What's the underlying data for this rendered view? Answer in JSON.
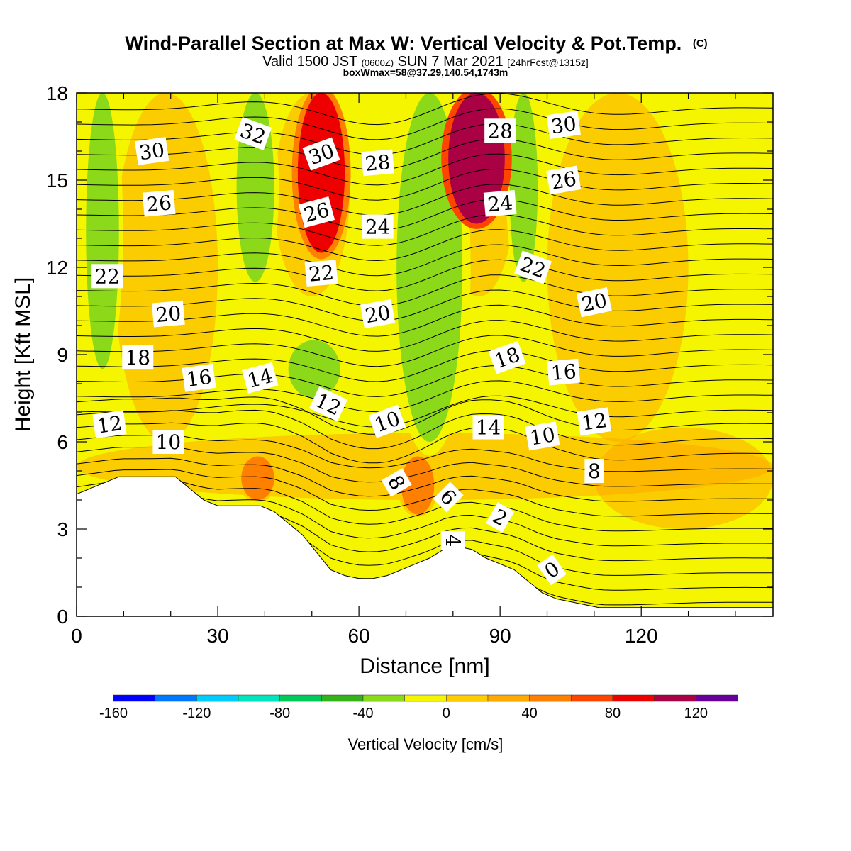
{
  "chart_data": {
    "type": "heatmap",
    "title": "Wind-Parallel Section at Max W: Vertical Velocity & Pot.Temp.",
    "title_mark": "(C)",
    "subtitle": {
      "prefix": "Valid 1500 JST ",
      "zone": "(0600Z)",
      "main": " SUN 7 Mar 2021 ",
      "fcst": "[24hrFcst@1315z]"
    },
    "subtitle2": "boxWmax=58@37.29,140.54,1743m",
    "xlabel": "Distance [nm]",
    "ylabel": "Height [Kft MSL]",
    "xlim": [
      0,
      148
    ],
    "ylim": [
      0,
      18
    ],
    "xticks": [
      0,
      30,
      60,
      90,
      120
    ],
    "yticks": [
      0,
      3,
      6,
      9,
      12,
      15,
      18
    ],
    "colorbar": {
      "label": "Vertical Velocity [cm/s]",
      "range": [
        -160,
        140
      ],
      "step": 20,
      "ticks": [
        -160,
        -120,
        -80,
        -40,
        0,
        40,
        80,
        120
      ],
      "colors": [
        "#0000ff",
        "#0077ff",
        "#00ccff",
        "#00e5bb",
        "#00c85a",
        "#33b21a",
        "#8cd91a",
        "#f5f500",
        "#ffcc00",
        "#ffaa00",
        "#ff8000",
        "#ff4400",
        "#ee0000",
        "#aa0044",
        "#660099"
      ]
    },
    "vertical_velocity_features": [
      {
        "kind": "downdraft",
        "x": [
          2,
          9
        ],
        "z": [
          8.5,
          18
        ],
        "w": -40
      },
      {
        "kind": "downdraft",
        "x": [
          34,
          42
        ],
        "z": [
          11.5,
          18
        ],
        "w": -40
      },
      {
        "kind": "downdraft",
        "x": [
          45,
          56
        ],
        "z": [
          7.5,
          9.5
        ],
        "w": -40
      },
      {
        "kind": "downdraft",
        "x": [
          68,
          82
        ],
        "z": [
          6,
          18
        ],
        "w": -40
      },
      {
        "kind": "downdraft",
        "x": [
          92,
          98
        ],
        "z": [
          11.5,
          18
        ],
        "w": -40
      },
      {
        "kind": "updraft",
        "x": [
          47,
          57
        ],
        "z": [
          12.5,
          18
        ],
        "w": 80
      },
      {
        "kind": "updraft",
        "x": [
          79,
          91
        ],
        "z": [
          13.5,
          18
        ],
        "w": 100
      },
      {
        "kind": "updraft",
        "x": [
          69,
          76
        ],
        "z": [
          3.5,
          5.5
        ],
        "w": 40
      },
      {
        "kind": "updraft",
        "x": [
          35,
          42
        ],
        "z": [
          4,
          5.5
        ],
        "w": 40
      }
    ],
    "terrain": {
      "x": [
        0,
        3,
        6,
        9,
        12,
        15,
        18,
        21,
        24,
        27,
        30,
        33,
        36,
        39,
        42,
        45,
        48,
        51,
        54,
        57,
        60,
        63,
        66,
        69,
        72,
        75,
        78,
        81,
        84,
        87,
        90,
        93,
        96,
        99,
        102,
        105,
        108,
        111,
        148
      ],
      "z": [
        4.2,
        4.4,
        4.6,
        4.8,
        4.8,
        4.8,
        4.8,
        4.8,
        4.4,
        4.0,
        3.8,
        3.8,
        3.8,
        3.8,
        3.6,
        3.2,
        2.8,
        2.2,
        1.6,
        1.4,
        1.3,
        1.3,
        1.4,
        1.6,
        1.8,
        2.0,
        2.3,
        2.4,
        2.3,
        2.0,
        1.8,
        1.6,
        1.2,
        0.8,
        0.6,
        0.5,
        0.4,
        0.3,
        0.3
      ]
    },
    "potential_temperature_labels": [
      {
        "value": "32",
        "x": 37.5,
        "z": 16.6,
        "angle": 20
      },
      {
        "value": "30",
        "x": 16,
        "z": 16.0,
        "angle": -8
      },
      {
        "value": "26",
        "x": 17.5,
        "z": 14.2,
        "angle": -5
      },
      {
        "value": "22",
        "x": 6.5,
        "z": 11.7,
        "angle": 0
      },
      {
        "value": "20",
        "x": 19.5,
        "z": 10.4,
        "angle": -5
      },
      {
        "value": "18",
        "x": 13,
        "z": 8.9,
        "angle": 0
      },
      {
        "value": "16",
        "x": 26,
        "z": 8.2,
        "angle": -8
      },
      {
        "value": "14",
        "x": 39,
        "z": 8.2,
        "angle": -15
      },
      {
        "value": "12",
        "x": 7,
        "z": 6.6,
        "angle": -8
      },
      {
        "value": "10",
        "x": 19.5,
        "z": 6.0,
        "angle": 0
      },
      {
        "value": "30",
        "x": 52,
        "z": 15.9,
        "angle": -20
      },
      {
        "value": "28",
        "x": 64,
        "z": 15.6,
        "angle": -5
      },
      {
        "value": "26",
        "x": 51,
        "z": 13.9,
        "angle": -15
      },
      {
        "value": "24",
        "x": 64,
        "z": 13.4,
        "angle": 0
      },
      {
        "value": "22",
        "x": 52,
        "z": 11.8,
        "angle": -5
      },
      {
        "value": "20",
        "x": 64,
        "z": 10.4,
        "angle": -10
      },
      {
        "value": "12",
        "x": 53.5,
        "z": 7.3,
        "angle": 25
      },
      {
        "value": "10",
        "x": 66,
        "z": 6.7,
        "angle": -20
      },
      {
        "value": "8",
        "x": 68,
        "z": 4.6,
        "angle": 60
      },
      {
        "value": "6",
        "x": 79,
        "z": 4.1,
        "angle": 45
      },
      {
        "value": "4",
        "x": 80,
        "z": 2.6,
        "angle": 90
      },
      {
        "value": "2",
        "x": 90,
        "z": 3.4,
        "angle": 30
      },
      {
        "value": "0",
        "x": 101,
        "z": 1.6,
        "angle": -35
      },
      {
        "value": "28",
        "x": 90,
        "z": 16.7,
        "angle": 0
      },
      {
        "value": "24",
        "x": 90,
        "z": 14.2,
        "angle": -5
      },
      {
        "value": "22",
        "x": 97,
        "z": 12.0,
        "angle": 20
      },
      {
        "value": "18",
        "x": 91.5,
        "z": 8.9,
        "angle": -20
      },
      {
        "value": "14",
        "x": 87.5,
        "z": 6.5,
        "angle": 0
      },
      {
        "value": "10",
        "x": 99,
        "z": 6.2,
        "angle": -10
      },
      {
        "value": "8",
        "x": 110,
        "z": 5.0,
        "angle": 0
      },
      {
        "value": "30",
        "x": 103.5,
        "z": 16.9,
        "angle": -8
      },
      {
        "value": "26",
        "x": 103.5,
        "z": 15.0,
        "angle": -10
      },
      {
        "value": "20",
        "x": 110,
        "z": 10.8,
        "angle": -12
      },
      {
        "value": "16",
        "x": 103.5,
        "z": 8.4,
        "angle": -5
      },
      {
        "value": "12",
        "x": 110,
        "z": 6.7,
        "angle": -8
      }
    ]
  }
}
